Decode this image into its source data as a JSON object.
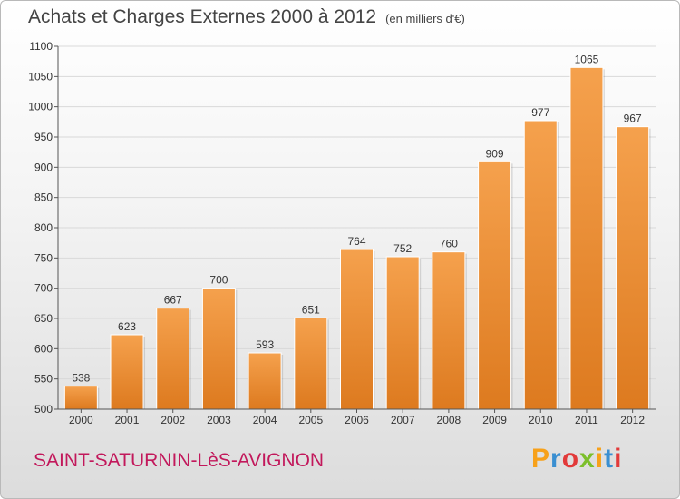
{
  "chart_data": {
    "type": "bar",
    "title": "Achats et Charges Externes 2000 à 2012",
    "subtitle": "(en milliers d'€)",
    "categories": [
      "2000",
      "2001",
      "2002",
      "2003",
      "2004",
      "2005",
      "2006",
      "2007",
      "2008",
      "2009",
      "2010",
      "2011",
      "2012"
    ],
    "values": [
      538,
      623,
      667,
      700,
      593,
      651,
      764,
      752,
      760,
      909,
      977,
      1065,
      967
    ],
    "ylim": [
      500,
      1100
    ],
    "yticks": [
      500,
      550,
      600,
      650,
      700,
      750,
      800,
      850,
      900,
      950,
      1000,
      1050,
      1100
    ],
    "xlabel": "",
    "ylabel": "",
    "grid": true,
    "bar_color_top": "#f5a14d",
    "bar_color_bottom": "#dd7a1f"
  },
  "footer": {
    "town": "SAINT-SATURNIN-LèS-AVIGNON",
    "town_color": "#c2185b",
    "brand_letters": [
      "P",
      "r",
      "o",
      "x",
      "i",
      "t",
      "i"
    ],
    "brand_colors": [
      "#f7a11a",
      "#3a8fd1",
      "#e23a3a",
      "#7cbf2b",
      "#f7a11a",
      "#3a8fd1",
      "#e23a3a"
    ]
  }
}
